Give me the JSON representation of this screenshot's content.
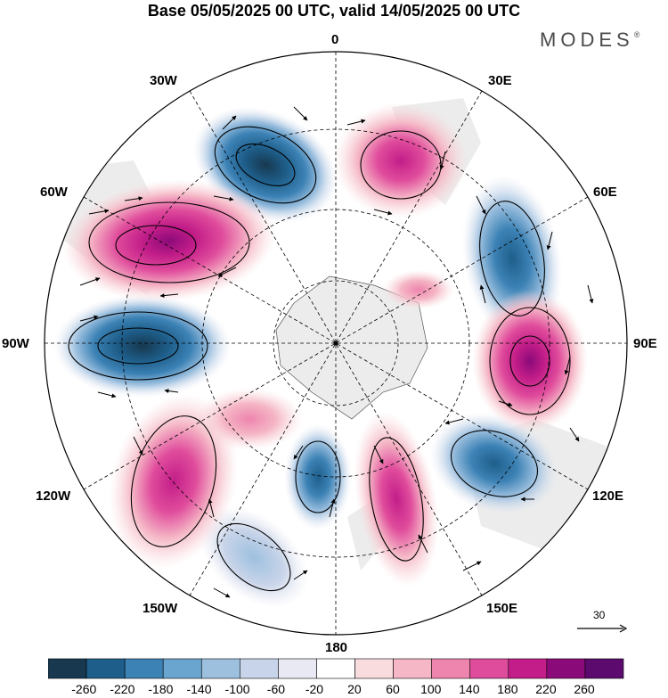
{
  "title": "Base 05/05/2025 00 UTC, valid 14/05/2025 00 UTC",
  "brand": {
    "text": "MODES",
    "mark": "®"
  },
  "map": {
    "projection": "south-polar-stereographic",
    "longitude_labels": [
      "0",
      "30E",
      "60E",
      "90E",
      "120E",
      "150E",
      "180",
      "150W",
      "120W",
      "90W",
      "60W",
      "30W"
    ],
    "landmass_color": "#ececec"
  },
  "reference_vector": {
    "label": "30"
  },
  "colorbar": {
    "ticks": [
      "-260",
      "-220",
      "-180",
      "-140",
      "-100",
      "-60",
      "-20",
      "20",
      "60",
      "100",
      "140",
      "180",
      "220",
      "260"
    ],
    "colors": [
      "#17384f",
      "#1e5e8a",
      "#3c82b5",
      "#6aa5cf",
      "#9dc0df",
      "#c8d4e9",
      "#e8e9f3",
      "#ffffff",
      "#f9dcde",
      "#f5b7c6",
      "#ee85ae",
      "#e04c9c",
      "#c21d88",
      "#8b0a7a",
      "#5c0a6e"
    ]
  }
}
